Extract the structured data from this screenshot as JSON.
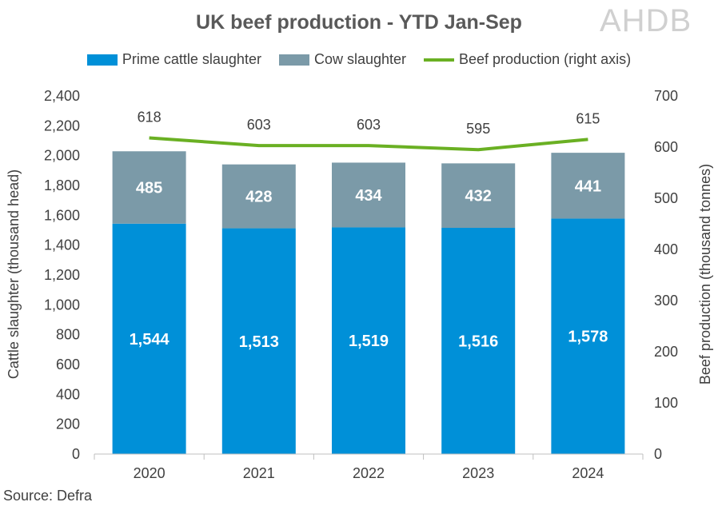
{
  "chart_data": {
    "type": "bar",
    "title": "UK beef production - YTD Jan-Sep",
    "categories": [
      "2020",
      "2021",
      "2022",
      "2023",
      "2024"
    ],
    "series": [
      {
        "name": "Prime cattle slaughter",
        "type": "bar",
        "axis": "left",
        "color": "#0090d8",
        "values": [
          1544,
          1513,
          1519,
          1516,
          1578
        ],
        "labels": [
          "1,544",
          "1,513",
          "1,519",
          "1,516",
          "1,578"
        ]
      },
      {
        "name": "Cow slaughter",
        "type": "bar",
        "axis": "left",
        "color": "#7b9aa8",
        "values": [
          485,
          428,
          434,
          432,
          441
        ],
        "labels": [
          "485",
          "428",
          "434",
          "432",
          "441"
        ]
      },
      {
        "name": "Beef production (right axis)",
        "type": "line",
        "axis": "right",
        "color": "#6ab023",
        "values": [
          618,
          603,
          603,
          595,
          615
        ],
        "labels": [
          "618",
          "603",
          "603",
          "595",
          "615"
        ]
      }
    ],
    "stacked": true,
    "ylabel": "Cattle slaughter (thousand head)",
    "y2label": "Beef production (thousand tonnes)",
    "ylim": [
      0,
      2400
    ],
    "y2lim": [
      0,
      700
    ],
    "yticks": [
      "0",
      "200",
      "400",
      "600",
      "800",
      "1,000",
      "1,200",
      "1,400",
      "1,600",
      "1,800",
      "2,000",
      "2,200",
      "2,400"
    ],
    "y2ticks": [
      "0",
      "100",
      "200",
      "300",
      "400",
      "500",
      "600",
      "700"
    ],
    "grid": false,
    "legend_position": "top"
  },
  "source": "Source: Defra",
  "logo_text": "AHDB"
}
